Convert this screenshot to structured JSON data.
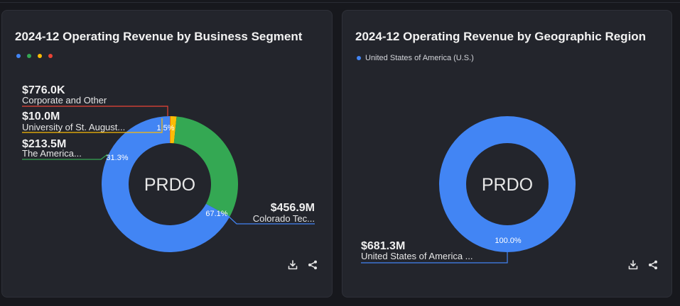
{
  "ticker": "PRDO",
  "colors": {
    "blue": "#4285f4",
    "green": "#34a853",
    "yellow": "#fbbc05",
    "red": "#ea4335",
    "hole": "#23252c"
  },
  "chart_data": [
    {
      "type": "pie",
      "title": "2024-12 Operating Revenue by Business Segment",
      "center_label": "PRDO",
      "legend": [
        {
          "label": "",
          "color": "#4285f4"
        },
        {
          "label": "",
          "color": "#34a853"
        },
        {
          "label": "",
          "color": "#fbbc05"
        },
        {
          "label": "",
          "color": "#ea4335"
        }
      ],
      "slices": [
        {
          "label": "Colorado Tec...",
          "value": 456.9,
          "value_label": "$456.9M",
          "percent_label": "67.1%",
          "color": "#4285f4"
        },
        {
          "label": "The America...",
          "value": 213.5,
          "value_label": "$213.5M",
          "percent_label": "31.3%",
          "color": "#34a853"
        },
        {
          "label": "University of St. August...",
          "value": 10.0,
          "value_label": "$10.0M",
          "percent_label": "1.5%",
          "color": "#fbbc05"
        },
        {
          "label": "Corporate and Other",
          "value": 0.776,
          "value_label": "$776.0K",
          "percent_label": "",
          "color": "#ea4335"
        }
      ]
    },
    {
      "type": "pie",
      "title": "2024-12 Operating Revenue by Geographic Region",
      "center_label": "PRDO",
      "legend": [
        {
          "label": "United States of America (U.S.)",
          "color": "#4285f4"
        }
      ],
      "slices": [
        {
          "label": "United States of America ...",
          "value": 681.3,
          "value_label": "$681.3M",
          "percent_label": "100.0%",
          "color": "#4285f4"
        }
      ]
    }
  ],
  "toolbar": {
    "download_icon": "download-icon",
    "share_icon": "share-icon"
  }
}
